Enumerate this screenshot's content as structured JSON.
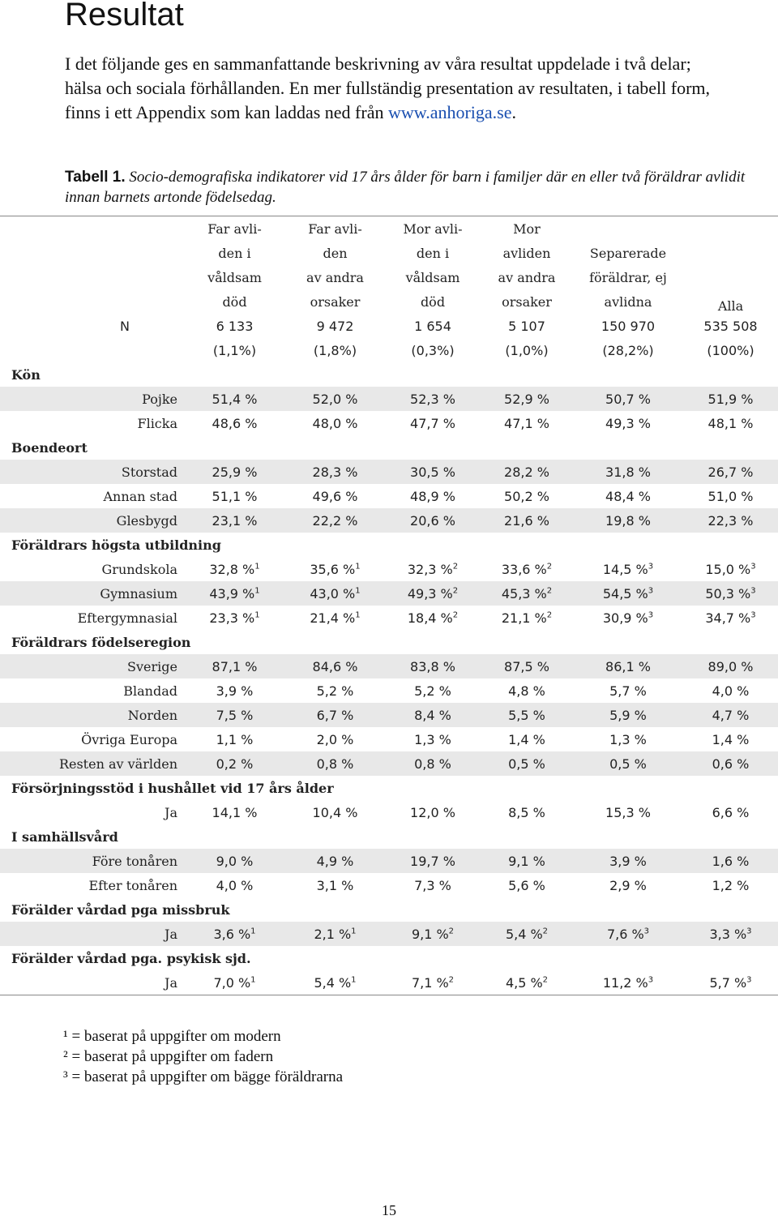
{
  "title": "Resultat",
  "intro": {
    "text": "I det följande ges en sammanfattande beskrivning av våra resultat uppdelade i två delar; hälsa och sociala förhållanden. En mer fullständig presentation av resultaten, i tabell form, finns i ett Appendix som kan laddas ned från ",
    "link": "www.anhoriga.se",
    "end": "."
  },
  "caption": {
    "label": "Tabell 1.",
    "text": " Socio-demografiska indikatorer vid 17 års ålder för barn i familjer där en eller två föräldrar avlidit innan barnets artonde födelsedag."
  },
  "table": {
    "header_lines": [
      [
        "Far avli-",
        "Far avli-",
        "Mor avli-",
        "Mor",
        "",
        ""
      ],
      [
        "den i",
        "den",
        "den i",
        "avliden",
        "Separerade",
        ""
      ],
      [
        "våldsam",
        "av andra",
        "våldsam",
        "av andra",
        "föräldrar, ej",
        ""
      ],
      [
        "död",
        "orsaker",
        "död",
        "orsaker",
        "avlidna",
        "Alla"
      ]
    ],
    "n_label": "N",
    "n_counts": [
      "6 133",
      "9 472",
      "1 654",
      "5 107",
      "150 970",
      "535 508"
    ],
    "n_pcts": [
      "(1,1%)",
      "(1,8%)",
      "(0,3%)",
      "(1,0%)",
      "(28,2%)",
      "(100%)"
    ],
    "sections": [
      {
        "title": "Kön",
        "rows": [
          {
            "label": "Pojke",
            "values": [
              "51,4 %",
              "52,0 %",
              "52,3 %",
              "52,9 %",
              "50,7 %",
              "51,9 %"
            ]
          },
          {
            "label": "Flicka",
            "values": [
              "48,6 %",
              "48,0 %",
              "47,7 %",
              "47,1 %",
              "49,3 %",
              "48,1 %"
            ]
          }
        ]
      },
      {
        "title": "Boendeort",
        "rows": [
          {
            "label": "Storstad",
            "values": [
              "25,9 %",
              "28,3 %",
              "30,5 %",
              "28,2 %",
              "31,8 %",
              "26,7 %"
            ]
          },
          {
            "label": "Annan stad",
            "values": [
              "51,1 %",
              "49,6 %",
              "48,9 %",
              "50,2 %",
              "48,4 %",
              "51,0 %"
            ]
          },
          {
            "label": "Glesbygd",
            "values": [
              "23,1 %",
              "22,2 %",
              "20,6 %",
              "21,6 %",
              "19,8 %",
              "22,3 %"
            ]
          }
        ]
      },
      {
        "title": "Föräldrars högsta utbildning",
        "rows": [
          {
            "label": "Grundskola",
            "values": [
              "32,8 %",
              "35,6 %",
              "32,3 %",
              "33,6 %",
              "14,5 %",
              "15,0 %"
            ],
            "sups": [
              "1",
              "1",
              "2",
              "2",
              "3",
              "3"
            ]
          },
          {
            "label": "Gymnasium",
            "values": [
              "43,9 %",
              "43,0 %",
              "49,3 %",
              "45,3 %",
              "54,5 %",
              "50,3 %"
            ],
            "sups": [
              "1",
              "1",
              "2",
              "2",
              "3",
              "3"
            ]
          },
          {
            "label": "Eftergymnasial",
            "values": [
              "23,3 %",
              "21,4 %",
              "18,4 %",
              "21,1 %",
              "30,9 %",
              "34,7 %"
            ],
            "sups": [
              "1",
              "1",
              "2",
              "2",
              "3",
              "3"
            ]
          }
        ]
      },
      {
        "title": "Föräldrars födelseregion",
        "rows": [
          {
            "label": "Sverige",
            "values": [
              "87,1 %",
              "84,6 %",
              "83,8 %",
              "87,5 %",
              "86,1 %",
              "89,0 %"
            ]
          },
          {
            "label": "Blandad",
            "values": [
              "3,9 %",
              "5,2 %",
              "5,2 %",
              "4,8 %",
              "5,7 %",
              "4,0 %"
            ]
          },
          {
            "label": "Norden",
            "values": [
              "7,5 %",
              "6,7 %",
              "8,4 %",
              "5,5 %",
              "5,9 %",
              "4,7 %"
            ]
          },
          {
            "label": "Övriga Europa",
            "values": [
              "1,1 %",
              "2,0 %",
              "1,3 %",
              "1,4 %",
              "1,3 %",
              "1,4 %"
            ]
          },
          {
            "label": "Resten av världen",
            "values": [
              "0,2 %",
              "0,8 %",
              "0,8 %",
              "0,5 %",
              "0,5 %",
              "0,6 %"
            ]
          }
        ]
      },
      {
        "title": "Försörjningsstöd i hushållet vid 17 års ålder",
        "rows": [
          {
            "label": "Ja",
            "values": [
              "14,1 %",
              "10,4 %",
              "12,0 %",
              "8,5 %",
              "15,3 %",
              "6,6 %"
            ]
          }
        ]
      },
      {
        "title": "I samhällsvård",
        "rows": [
          {
            "label": "Före tonåren",
            "values": [
              "9,0 %",
              "4,9 %",
              "19,7 %",
              "9,1 %",
              "3,9 %",
              "1,6 %"
            ]
          },
          {
            "label": "Efter tonåren",
            "values": [
              "4,0 %",
              "3,1 %",
              "7,3 %",
              "5,6 %",
              "2,9 %",
              "1,2 %"
            ]
          }
        ]
      },
      {
        "title": "Förälder vårdad pga missbruk",
        "rows": [
          {
            "label": "Ja",
            "values": [
              "3,6 %",
              "2,1 %",
              "9,1 %",
              "5,4 %",
              "7,6 %",
              "3,3 %"
            ],
            "sups": [
              "1",
              "1",
              "2",
              "2",
              "3",
              "3"
            ]
          }
        ]
      },
      {
        "title": "Förälder vårdad pga. psykisk sjd.",
        "rows": [
          {
            "label": "Ja",
            "values": [
              "7,0 %",
              "5,4 %",
              "7,1 %",
              "4,5 %",
              "11,2 %",
              "5,7 %"
            ],
            "sups": [
              "1",
              "1",
              "2",
              "2",
              "3",
              "3"
            ]
          }
        ]
      }
    ]
  },
  "footnotes": [
    "¹ = baserat på uppgifter om modern",
    "² = baserat på uppgifter om fadern",
    "³ = baserat på uppgifter om bägge föräldrarna"
  ],
  "page_number": "15",
  "colors": {
    "shade": "#e8e8e8",
    "link": "#1a4fb0",
    "rule": "#888888"
  }
}
